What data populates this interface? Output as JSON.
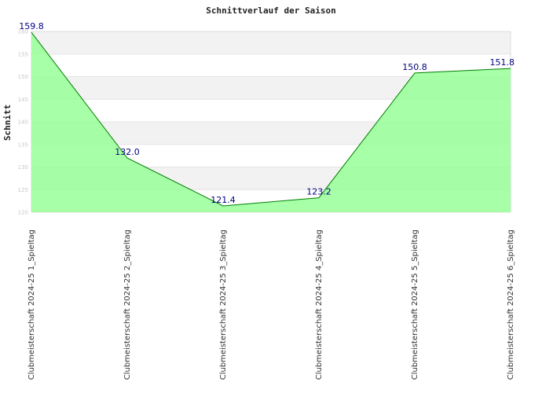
{
  "chart_data": {
    "type": "area",
    "title": "Schnittverlauf der Saison",
    "xlabel": "",
    "ylabel": "Schnitt",
    "categories": [
      "Clubmeisterschaft 2024-25   1_Spieltag",
      "Clubmeisterschaft 2024-25   2_Spieltag",
      "Clubmeisterschaft 2024-25   3_Spieltag",
      "Clubmeisterschaft 2024-25   4_Spieltag",
      "Clubmeisterschaft 2024-25   5_Spieltag",
      "Clubmeisterschaft 2024-25   6_Spieltag"
    ],
    "values": [
      159.8,
      132.0,
      121.4,
      123.2,
      150.8,
      151.8
    ],
    "data_labels": [
      "159.8",
      "132.0",
      "121.4",
      "123.2",
      "150.8",
      "151.8"
    ],
    "ylim": [
      120,
      160
    ],
    "yticks": [
      120,
      125,
      130,
      135,
      140,
      145,
      150,
      155,
      160
    ],
    "grid": true,
    "legend": "none",
    "colors": {
      "fill": "#98ff98",
      "line": "#008000",
      "band_gray": "#f2f2f2",
      "band_white": "#ffffff",
      "data_label": "#000080"
    }
  }
}
